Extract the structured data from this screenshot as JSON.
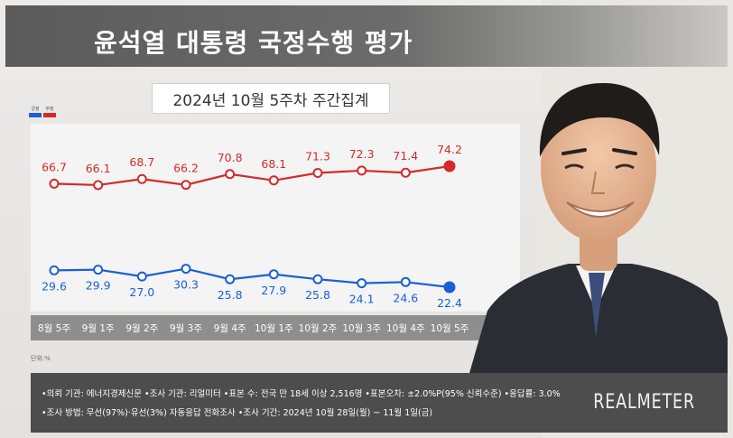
{
  "header": {
    "title": "윤석열 대통령 국정수행 평가"
  },
  "period": "2024년 10월 5주차 주간집계",
  "legend": [
    {
      "label": "긍정",
      "color": "#1a5fd6"
    },
    {
      "label": "부정",
      "color": "#d42a2a"
    }
  ],
  "unit": "단위:%",
  "chart_data": {
    "type": "line",
    "categories": [
      "8월 5주",
      "9월 1주",
      "9월 2주",
      "9월 3주",
      "9월 4주",
      "10월 1주",
      "10월 2주",
      "10월 3주",
      "10월 4주",
      "10월 5주"
    ],
    "series": [
      {
        "name": "부정",
        "color": "#d42a2a",
        "values": [
          66.7,
          66.1,
          68.7,
          66.2,
          70.8,
          68.1,
          71.3,
          72.3,
          71.4,
          74.2
        ]
      },
      {
        "name": "긍정",
        "color": "#1a5fd6",
        "values": [
          29.6,
          29.9,
          27.0,
          30.3,
          25.8,
          27.9,
          25.8,
          24.1,
          24.6,
          22.4
        ]
      }
    ],
    "title": "윤석열 대통령 국정수행 평가",
    "subtitle": "2024년 10월 5주차 주간집계",
    "ylabel": "",
    "grid": false,
    "legend_position": "top-left"
  },
  "footer": {
    "line1": "•의뢰 기관: 에너지경제신문 •조사 기관: 리얼미터 •표본 수: 전국 만 18세 이상 2,516명 •표본오차: ±2.0%P(95% 신뢰수준) •응답률: 3.0%",
    "line2": "•조사 방법: 무선(97%)·유선(3%) 자동응답 전화조사 •조사 기간: 2024년 10월 28일(월) ~ 11월 1일(금)",
    "brand": "REALMETER"
  },
  "photo": {
    "icon": "president-portrait"
  }
}
